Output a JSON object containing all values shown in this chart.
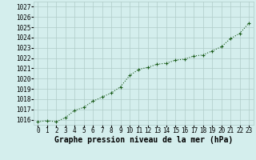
{
  "x": [
    0,
    1,
    2,
    3,
    4,
    5,
    6,
    7,
    8,
    9,
    10,
    11,
    12,
    13,
    14,
    15,
    16,
    17,
    18,
    19,
    20,
    21,
    22,
    23
  ],
  "y": [
    1015.8,
    1015.9,
    1015.8,
    1016.2,
    1016.9,
    1017.2,
    1017.8,
    1018.2,
    1018.6,
    1019.2,
    1020.3,
    1020.9,
    1021.1,
    1021.4,
    1021.5,
    1021.8,
    1021.9,
    1022.2,
    1022.3,
    1022.7,
    1023.1,
    1023.9,
    1024.4,
    1025.4
  ],
  "line_color": "#1a5c1a",
  "marker": "+",
  "marker_size": 3,
  "bg_color": "#d4eeed",
  "grid_color": "#b0ccc8",
  "xlabel": "Graphe pression niveau de la mer (hPa)",
  "xlabel_fontsize": 7,
  "ylim": [
    1015.5,
    1027.5
  ],
  "yticks": [
    1016,
    1017,
    1018,
    1019,
    1020,
    1021,
    1022,
    1023,
    1024,
    1025,
    1026,
    1027
  ],
  "xticks": [
    0,
    1,
    2,
    3,
    4,
    5,
    6,
    7,
    8,
    9,
    10,
    11,
    12,
    13,
    14,
    15,
    16,
    17,
    18,
    19,
    20,
    21,
    22,
    23
  ],
  "tick_fontsize": 5.5,
  "xlim": [
    -0.5,
    23.5
  ]
}
